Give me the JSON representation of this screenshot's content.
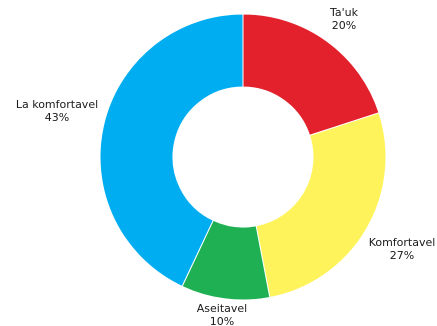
{
  "chart_data": {
    "type": "pie",
    "donut": true,
    "slices": [
      {
        "name": "Ta'uk",
        "value": 20,
        "value_label": "20%",
        "color": "#e3212d"
      },
      {
        "name": "Komfortavel",
        "value": 27,
        "value_label": "27%",
        "color": "#fef35b"
      },
      {
        "name": "Aseitavel",
        "value": 10,
        "value_label": "10%",
        "color": "#1eb052"
      },
      {
        "name": "La komfortavel",
        "value": 43,
        "value_label": "43%",
        "color": "#00adf1"
      }
    ],
    "start_angle_deg": 0,
    "direction": "clockwise",
    "legend": "none"
  }
}
